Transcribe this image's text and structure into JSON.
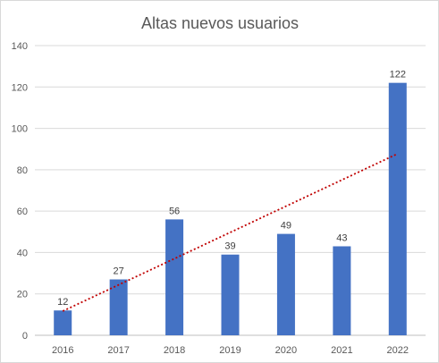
{
  "chart_data": {
    "type": "bar",
    "title": "Altas nuevos usuarios",
    "categories": [
      "2016",
      "2017",
      "2018",
      "2019",
      "2020",
      "2021",
      "2022"
    ],
    "series": [
      {
        "values": [
          12,
          27,
          56,
          39,
          49,
          43,
          122
        ]
      }
    ],
    "data_labels": [
      "12",
      "27",
      "56",
      "39",
      "49",
      "43",
      "122"
    ],
    "yticks": [
      "0",
      "20",
      "40",
      "60",
      "80",
      "100",
      "120",
      "140"
    ],
    "ylim": [
      0,
      140
    ],
    "grid": true,
    "legend": "none",
    "trendline": {
      "type": "linear",
      "style": "dotted",
      "color": "#c00000"
    },
    "colors": {
      "bar": "#4472c4",
      "grid": "#d9d9d9",
      "text": "#595959"
    }
  }
}
